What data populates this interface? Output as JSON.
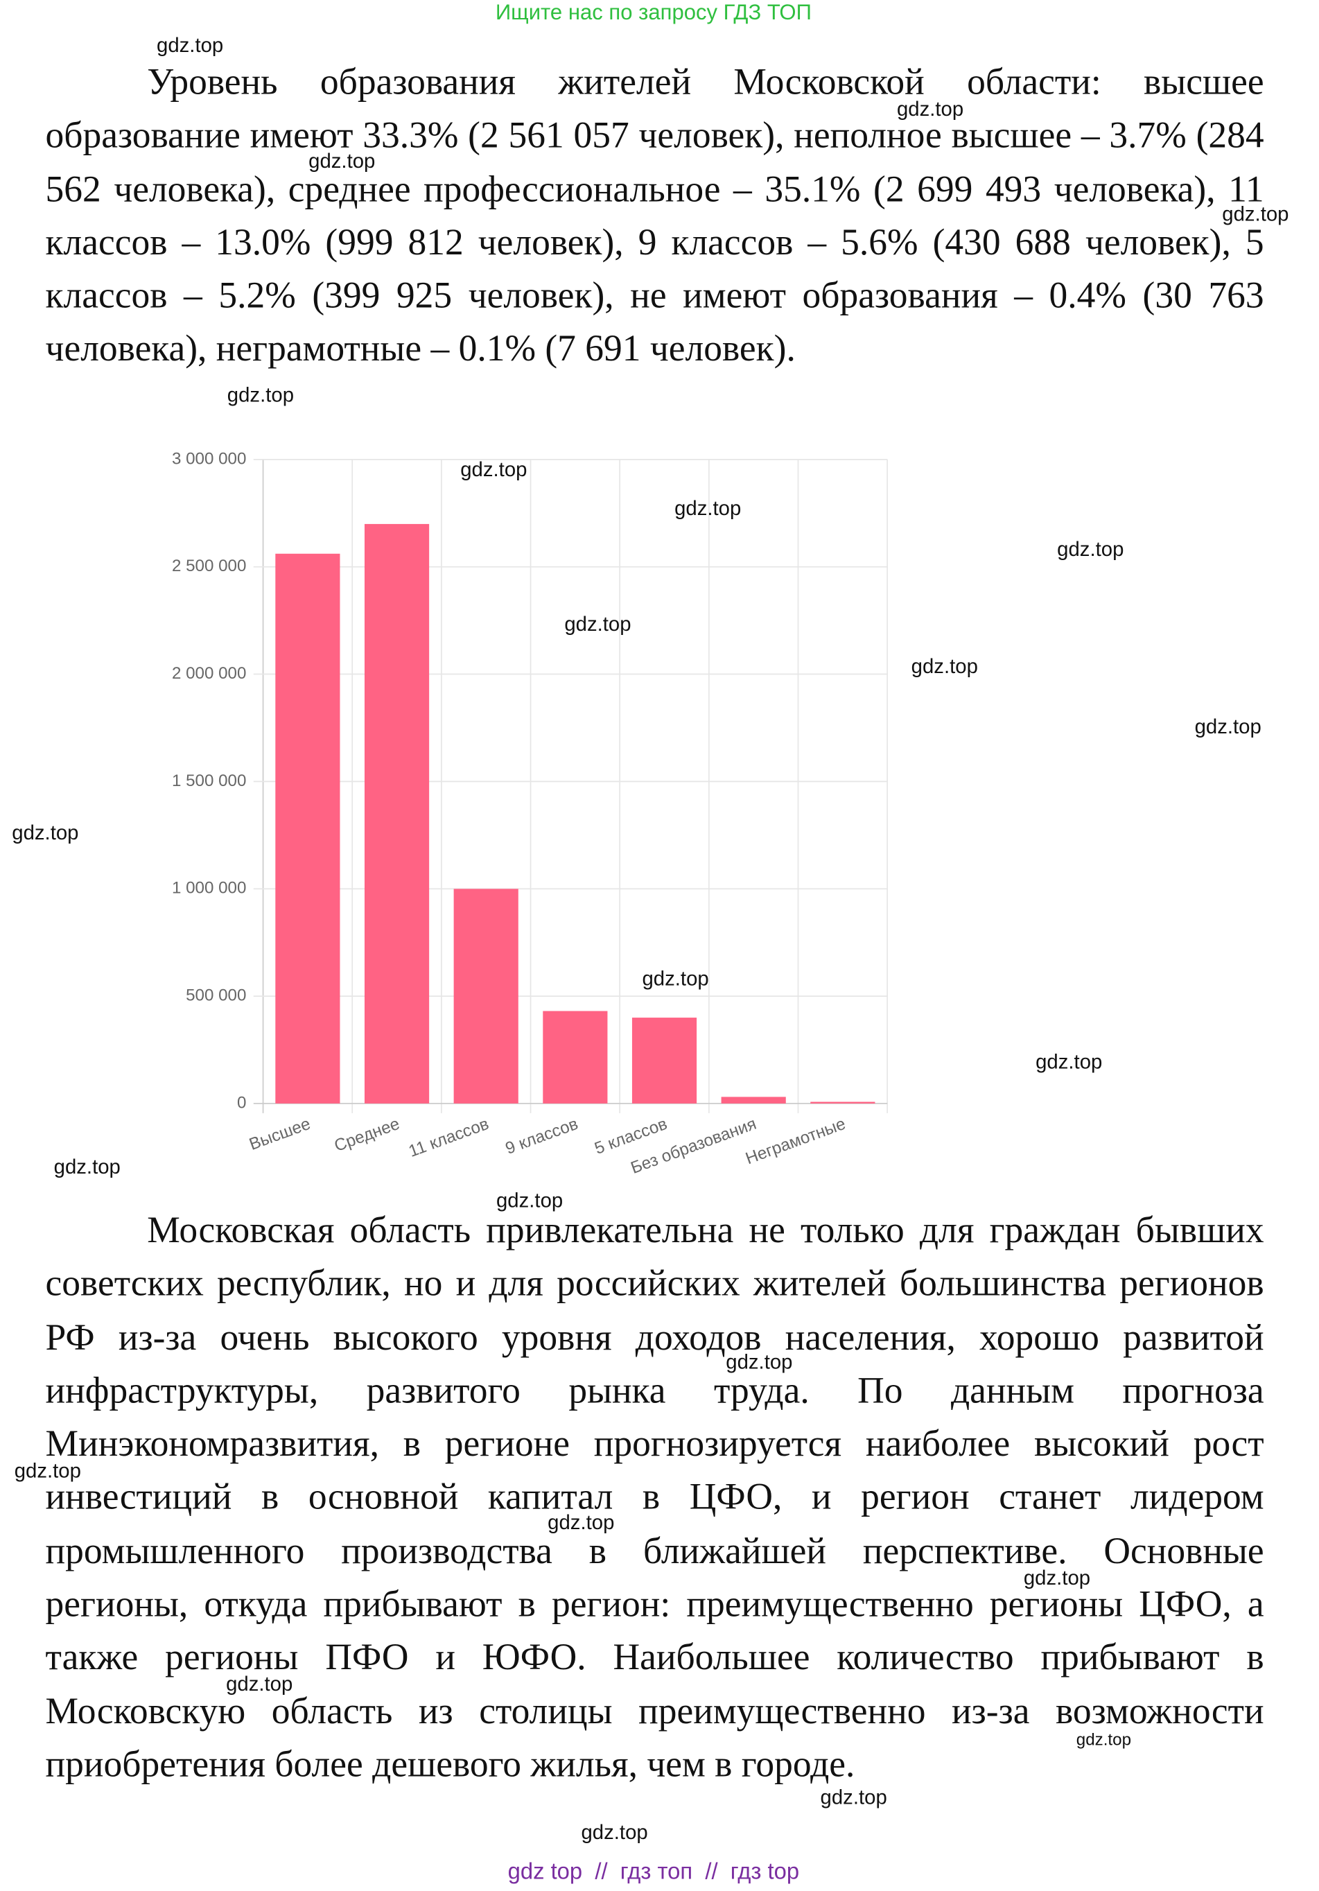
{
  "header": "Ищите нас по запросу ГДЗ ТОП",
  "paragraphs": [
    "Уровень образования жителей Московской области: высшее образование имеют 33.3% (2 561 057 человек), неполное высшее – 3.7% (284 562 человека), среднее профессиональное –  35.1% (2 699 493 человека), 11 классов –  13.0% (999 812 человек), 9 классов – 5.6% (430 688 человек), 5 классов – 5.2% (399 925 человек), не имеют образования –  0.4% (30 763 человека), неграмотные –  0.1% (7 691 человек).",
    "Московская область привлекательна не только для граждан бывших советских республик, но и для российских жителей большинства регионов РФ из-за очень высокого уровня доходов населения, хорошо развитой инфраструктуры, развитого рынка труда. По данным прогноза Минэкономразвития, в регионе прогнозируется наиболее высокий рост инвестиций в основной капитал в ЦФО, и регион станет лидером промышленного производства в ближайшей перспективе. Основные регионы, откуда прибывают в регион: преимущественно регионы ЦФО, а также регионы ПФО и ЮФО. Наибольшее количество прибывают в Московскую область из столицы преимущественно из-за возможности приобретения более дешевого жилья, чем в городе."
  ],
  "chart_data": {
    "type": "bar",
    "categories": [
      "Высшее",
      "Среднее",
      "11 классов",
      "9 классов",
      "5 классов",
      "Без образования",
      "Неграмотные"
    ],
    "values": [
      2561057,
      2699493,
      999812,
      430688,
      399925,
      30763,
      7691
    ],
    "color": "#ff6384",
    "ylim": [
      0,
      3000000
    ],
    "yticks": [
      0,
      {
        "value": 500000,
        "label": "500 000"
      },
      {
        "value": 1000000,
        "label": "1 000 000"
      },
      {
        "value": 1500000,
        "label": "1 500 000"
      },
      {
        "value": 2000000,
        "label": "2 000 000"
      },
      {
        "value": 2500000,
        "label": "2 500 000"
      },
      {
        "value": 3000000,
        "label": "3 000 000"
      }
    ],
    "grid": true
  },
  "watermarks": [
    "gdz.top",
    "gdz.top",
    "gdz.top",
    "gdz.top",
    "gdz.top",
    "gdz.top",
    "gdz.top",
    "gdz.top",
    "gdz.top",
    "gdz.top",
    "gdz.top",
    "gdz.top",
    "gdz.top",
    "gdz.top",
    "gdz.top",
    "gdz.top",
    "gdz.top",
    "gdz.top",
    "gdz.top",
    "gdz.top",
    "gdz.top",
    "gdz.top",
    "gdz.top",
    "gdz.top"
  ],
  "footer": "gdz top  //  гдз топ  //  гдз top"
}
